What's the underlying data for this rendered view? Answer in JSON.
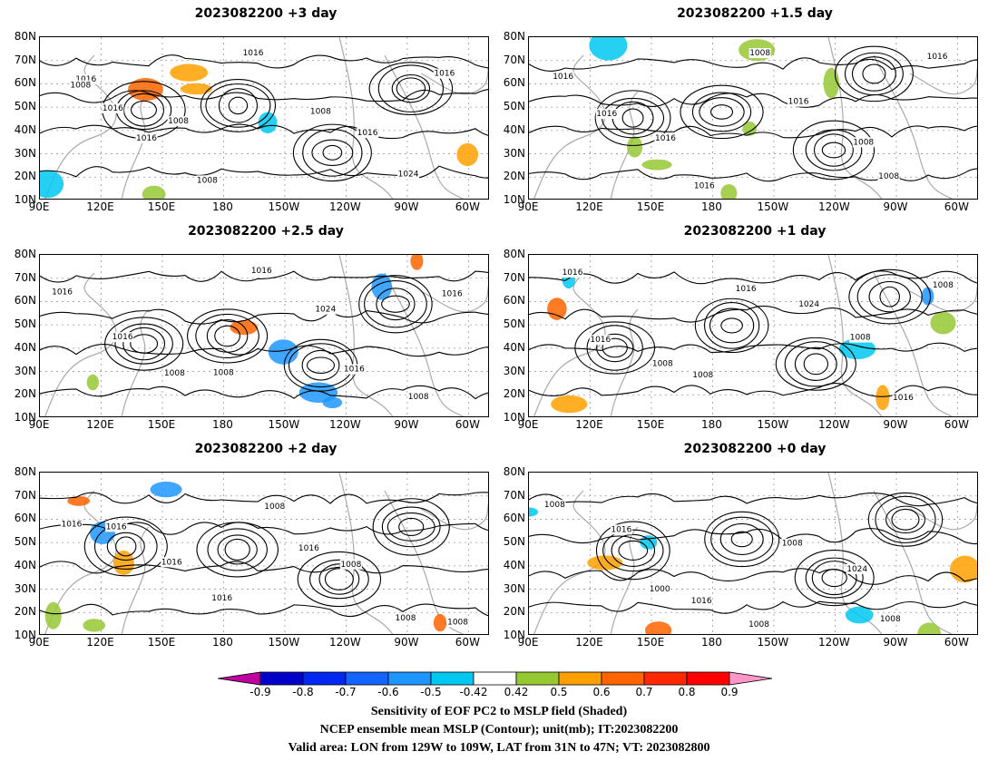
{
  "panels": [
    {
      "title": "2023082200 +3 day",
      "isobar_labels": [
        "1016",
        "1016",
        "1008",
        "1008",
        "1016",
        "1008",
        "1016",
        "1024",
        "1016",
        "1008",
        "1016"
      ]
    },
    {
      "title": "2023082200 +1.5 day",
      "isobar_labels": [
        "1016",
        "1016",
        "1016",
        "1016",
        "1008",
        "1016",
        "1008",
        "1008",
        "1016"
      ]
    },
    {
      "title": "2023082200 +2.5 day",
      "isobar_labels": [
        "1016",
        "1016",
        "1008",
        "1008",
        "1016",
        "1024",
        "1016",
        "1008",
        "1016"
      ]
    },
    {
      "title": "2023082200 +1 day",
      "isobar_labels": [
        "1016",
        "1016",
        "1008",
        "1008",
        "1016",
        "1024",
        "1008",
        "1016",
        "1008"
      ]
    },
    {
      "title": "2023082200 +2 day",
      "isobar_labels": [
        "1016",
        "1016",
        "1016",
        "1016",
        "1008",
        "1016",
        "1008",
        "1008",
        "1008"
      ]
    },
    {
      "title": "2023082200 +0 day",
      "isobar_labels": [
        "1008",
        "1016",
        "1000",
        "1016",
        "1008",
        "1008",
        "1024",
        "1008"
      ]
    }
  ],
  "lat_labels": [
    "80N",
    "70N",
    "60N",
    "50N",
    "40N",
    "30N",
    "20N",
    "10N"
  ],
  "lon_labels": [
    "90E",
    "120E",
    "150E",
    "180",
    "150W",
    "120W",
    "90W",
    "60W"
  ],
  "colorbar": {
    "labels": [
      "-0.9",
      "-0.8",
      "-0.7",
      "-0.6",
      "-0.5",
      "-0.42",
      "0.42",
      "0.5",
      "0.6",
      "0.7",
      "0.8",
      "0.9"
    ],
    "colors": [
      "#c000a0",
      "#0000c8",
      "#0028f0",
      "#1464ff",
      "#1e96ff",
      "#00c8f0",
      "#ffffff",
      "#96c832",
      "#ffa000",
      "#ff6400",
      "#ff2800",
      "#ff0000",
      "#ff96c8"
    ]
  },
  "footer": {
    "line1": "Sensitivity of EOF PC2 to MSLP field (Shaded)",
    "line2": "NCEP ensemble mean MSLP (Contour); unit(mb); IT:2023082200",
    "line3": "Valid area: LON from 129W to 109W, LAT from 31N to 47N; VT: 2023082800"
  }
}
